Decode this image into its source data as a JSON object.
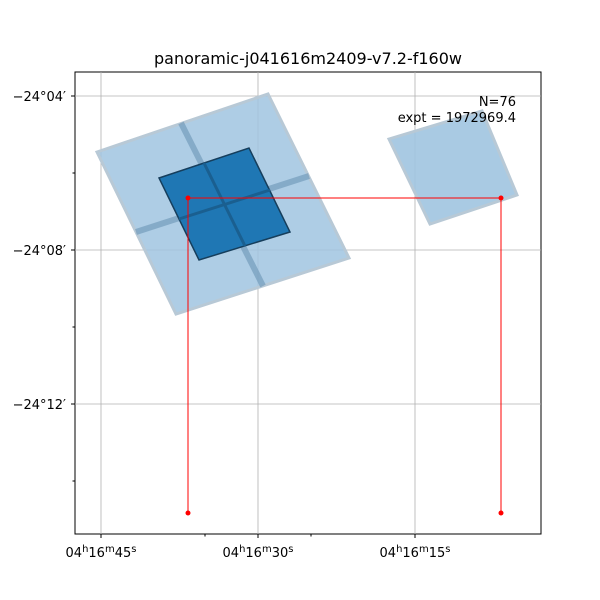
{
  "chart_data": {
    "type": "scatter",
    "title": "panoramic-j041616m2409-v7.2-f160w",
    "xlabel": "",
    "ylabel": "",
    "x_tick_labels": [
      {
        "h": "04",
        "m": "16",
        "s": "45"
      },
      {
        "h": "04",
        "m": "16",
        "s": "30"
      },
      {
        "h": "04",
        "m": "16",
        "s": "15"
      }
    ],
    "y_tick_labels": [
      "−24°04′",
      "−24°08′",
      "−24°12′"
    ],
    "grid": true,
    "annotations": {
      "n_label": "N=76",
      "expt_label": "expt = 1972969.4"
    },
    "footprint_color": "#1f77b4",
    "outline_color": "#ff0000",
    "outline_points_xy": [
      [
        188,
        513
      ],
      [
        188,
        198
      ],
      [
        501,
        198
      ],
      [
        501,
        513
      ]
    ],
    "colors": {
      "light_tile": "#a0c4e0",
      "dark_tile": "#1f77b4",
      "edge": "#5f8aaa",
      "outline": "#ff0000"
    }
  }
}
